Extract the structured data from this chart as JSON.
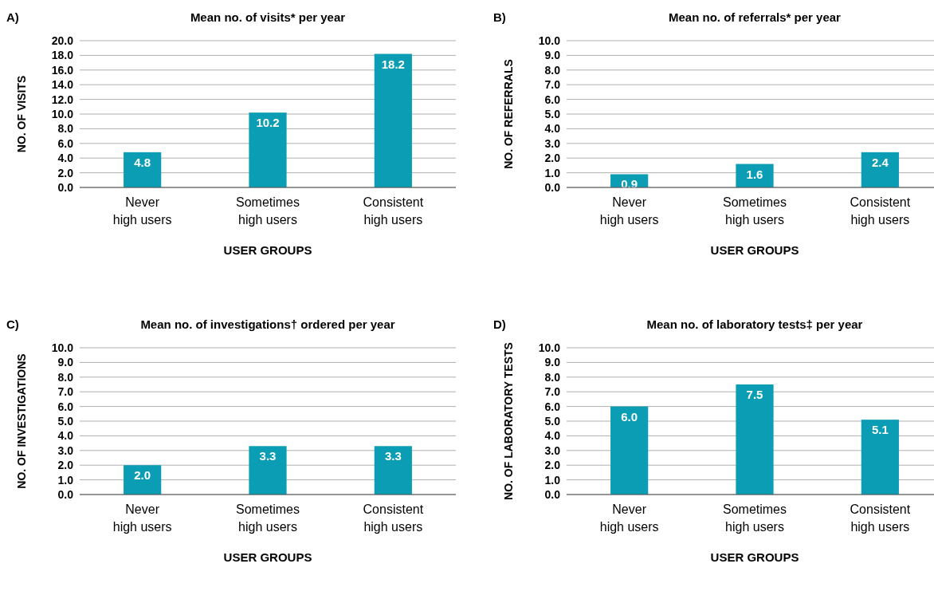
{
  "chart_data": [
    {
      "type": "bar",
      "title": "Mean no. of visits* per year",
      "annotations": [
        "A)"
      ],
      "xlabel": "USER GROUPS",
      "ylabel": "NO. OF VISITS",
      "categories": [
        "Never high users",
        "Sometimes high users",
        "Consistent high users"
      ],
      "values": [
        4.8,
        10.2,
        18.2
      ],
      "value_labels": [
        "4.8",
        "10.2",
        "18.2"
      ],
      "color": "#0a9db4",
      "ylim": [
        0,
        20
      ],
      "yticks": [
        {
          "value": 0,
          "label": "0.0"
        },
        {
          "value": 2,
          "label": "2.0"
        },
        {
          "value": 4,
          "label": "4.0"
        },
        {
          "value": 6,
          "label": "6.0"
        },
        {
          "value": 8,
          "label": "8.0"
        },
        {
          "value": 10,
          "label": "10.0"
        },
        {
          "value": 12,
          "label": "12.0"
        },
        {
          "value": 14,
          "label": "14.0"
        },
        {
          "value": 16,
          "label": "16.0"
        },
        {
          "value": 18,
          "label": "18.0"
        },
        {
          "value": 20,
          "label": "20.0"
        }
      ],
      "grid": "y"
    },
    {
      "type": "bar",
      "title": "Mean no. of referrals* per year",
      "annotations": [
        "B)"
      ],
      "xlabel": "USER GROUPS",
      "ylabel": "NO. OF REFERRALS",
      "categories": [
        "Never high users",
        "Sometimes high users",
        "Consistent high users"
      ],
      "values": [
        0.9,
        1.6,
        2.4
      ],
      "value_labels": [
        "0.9",
        "1.6",
        "2.4"
      ],
      "color": "#0a9db4",
      "ylim": [
        0,
        10
      ],
      "yticks": [
        {
          "value": 0,
          "label": "0.0"
        },
        {
          "value": 1,
          "label": "1.0"
        },
        {
          "value": 2,
          "label": "2.0"
        },
        {
          "value": 3,
          "label": "3.0"
        },
        {
          "value": 4,
          "label": "4.0"
        },
        {
          "value": 5,
          "label": "5.0"
        },
        {
          "value": 6,
          "label": "6.0"
        },
        {
          "value": 7,
          "label": "7.0"
        },
        {
          "value": 8,
          "label": "8.0"
        },
        {
          "value": 9,
          "label": "9.0"
        },
        {
          "value": 10,
          "label": "10.0"
        }
      ],
      "grid": "y"
    },
    {
      "type": "bar",
      "title": "Mean no. of investigations† ordered per year",
      "annotations": [
        "C)"
      ],
      "xlabel": "USER GROUPS",
      "ylabel": "NO. OF INVESTIGATIONS",
      "categories": [
        "Never high users",
        "Sometimes high users",
        "Consistent high users"
      ],
      "values": [
        2.0,
        3.3,
        3.3
      ],
      "value_labels": [
        "2.0",
        "3.3",
        "3.3"
      ],
      "color": "#0a9db4",
      "ylim": [
        0,
        10
      ],
      "yticks": [
        {
          "value": 0,
          "label": "0.0"
        },
        {
          "value": 1,
          "label": "1.0"
        },
        {
          "value": 2,
          "label": "2.0"
        },
        {
          "value": 3,
          "label": "3.0"
        },
        {
          "value": 4,
          "label": "4.0"
        },
        {
          "value": 5,
          "label": "5.0"
        },
        {
          "value": 6,
          "label": "6.0"
        },
        {
          "value": 7,
          "label": "7.0"
        },
        {
          "value": 8,
          "label": "8.0"
        },
        {
          "value": 9,
          "label": "9.0"
        },
        {
          "value": 10,
          "label": "10.0"
        }
      ],
      "grid": "y"
    },
    {
      "type": "bar",
      "title": "Mean no. of laboratory tests‡ per year",
      "annotations": [
        "D)"
      ],
      "xlabel": "USER GROUPS",
      "ylabel": "NO. OF LABORATORY TESTS",
      "categories": [
        "Never high users",
        "Sometimes high users",
        "Consistent high users"
      ],
      "values": [
        6.0,
        7.5,
        5.1
      ],
      "value_labels": [
        "6.0",
        "7.5",
        "5.1"
      ],
      "color": "#0a9db4",
      "ylim": [
        0,
        10
      ],
      "yticks": [
        {
          "value": 0,
          "label": "0.0"
        },
        {
          "value": 1,
          "label": "1.0"
        },
        {
          "value": 2,
          "label": "2.0"
        },
        {
          "value": 3,
          "label": "3.0"
        },
        {
          "value": 4,
          "label": "4.0"
        },
        {
          "value": 5,
          "label": "5.0"
        },
        {
          "value": 6,
          "label": "6.0"
        },
        {
          "value": 7,
          "label": "7.0"
        },
        {
          "value": 8,
          "label": "8.0"
        },
        {
          "value": 9,
          "label": "9.0"
        },
        {
          "value": 10,
          "label": "10.0"
        }
      ],
      "grid": "y"
    }
  ]
}
